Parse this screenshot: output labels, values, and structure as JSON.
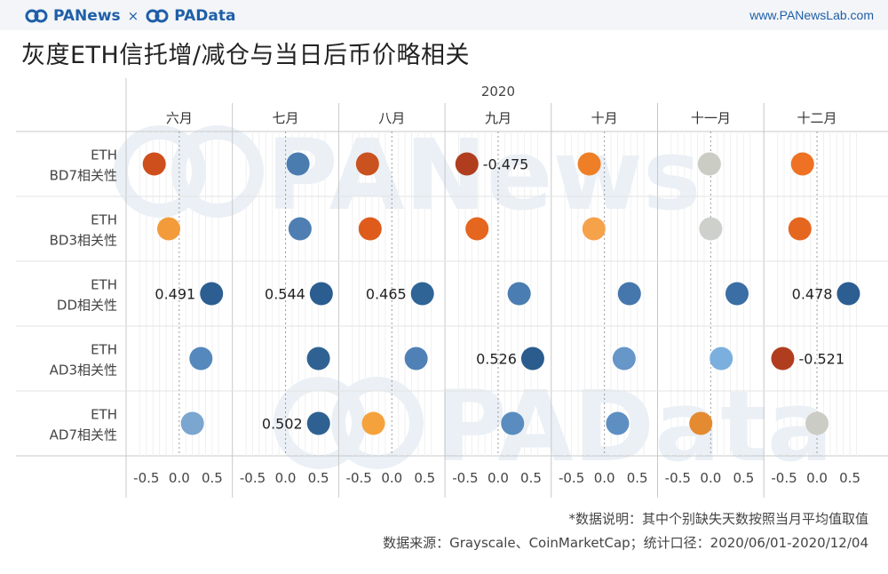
{
  "header": {
    "brand_left": "PANews",
    "brand_sep": "×",
    "brand_right": "PAData",
    "url": "www.PANewsLab.com",
    "brand_color": "#1f5fa8"
  },
  "title": "灰度ETH信托增/减仓与当日后币价略相关",
  "footnotes": {
    "line1": "*数据说明：其中个别缺失天数按照当月平均值取值",
    "line2": "数据来源：Grayscale、CoinMarketCap；统计口径：2020/06/01-2020/12/04"
  },
  "watermarks": [
    "PANews",
    "PAData"
  ],
  "chart_data": {
    "type": "scatter",
    "year_label": "2020",
    "columns": [
      "六月",
      "七月",
      "八月",
      "九月",
      "十月",
      "十一月",
      "十二月"
    ],
    "rows": [
      {
        "line1": "ETH",
        "line2": "BD7相关性"
      },
      {
        "line1": "ETH",
        "line2": "BD3相关性"
      },
      {
        "line1": "ETH",
        "line2": "DD相关性"
      },
      {
        "line1": "ETH",
        "line2": "AD3相关性"
      },
      {
        "line1": "ETH",
        "line2": "AD7相关性"
      }
    ],
    "x_ticks": [
      "-0.5",
      "0.0",
      "0.5"
    ],
    "xlim": [
      -0.7,
      0.7
    ],
    "values": [
      [
        -0.38,
        0.19,
        -0.37,
        -0.475,
        -0.23,
        -0.02,
        -0.22
      ],
      [
        -0.16,
        0.22,
        -0.33,
        -0.32,
        -0.16,
        0.0,
        -0.26
      ],
      [
        0.491,
        0.544,
        0.465,
        0.32,
        0.38,
        0.4,
        0.478
      ],
      [
        0.33,
        0.5,
        0.37,
        0.526,
        0.3,
        0.16,
        -0.521
      ],
      [
        0.2,
        0.502,
        -0.28,
        0.22,
        0.2,
        -0.15,
        0.0
      ]
    ],
    "labels": [
      [
        null,
        null,
        null,
        "-0.475",
        null,
        null,
        null
      ],
      [
        null,
        null,
        null,
        null,
        null,
        null,
        null
      ],
      [
        "0.491",
        "0.544",
        "0.465",
        null,
        null,
        null,
        "0.478"
      ],
      [
        null,
        null,
        null,
        "0.526",
        null,
        null,
        "-0.521"
      ],
      [
        null,
        "0.502",
        null,
        null,
        null,
        null,
        null
      ]
    ],
    "colors": [
      [
        "#cf4f1c",
        "#4a7cb0",
        "#c9521f",
        "#b03e1e",
        "#ef7f26",
        "#cbccc4",
        "#ef7124"
      ],
      [
        "#f39b3a",
        "#4f7fb2",
        "#de5b1c",
        "#e5661f",
        "#f6a24a",
        "#cdd0cb",
        "#e5661f"
      ],
      [
        "#2c5e92",
        "#2b5d91",
        "#2f6497",
        "#4a7db1",
        "#4577ad",
        "#3a6ea5",
        "#2c5e92"
      ],
      [
        "#5588bc",
        "#2f6293",
        "#4f81b6",
        "#2a5c8d",
        "#6796c8",
        "#7bb0de",
        "#b03e1e"
      ],
      [
        "#7aa6d0",
        "#2e6192",
        "#f5a23c",
        "#5a8cbf",
        "#5e8fc2",
        "#e48a30",
        "#cbccc4"
      ]
    ]
  }
}
